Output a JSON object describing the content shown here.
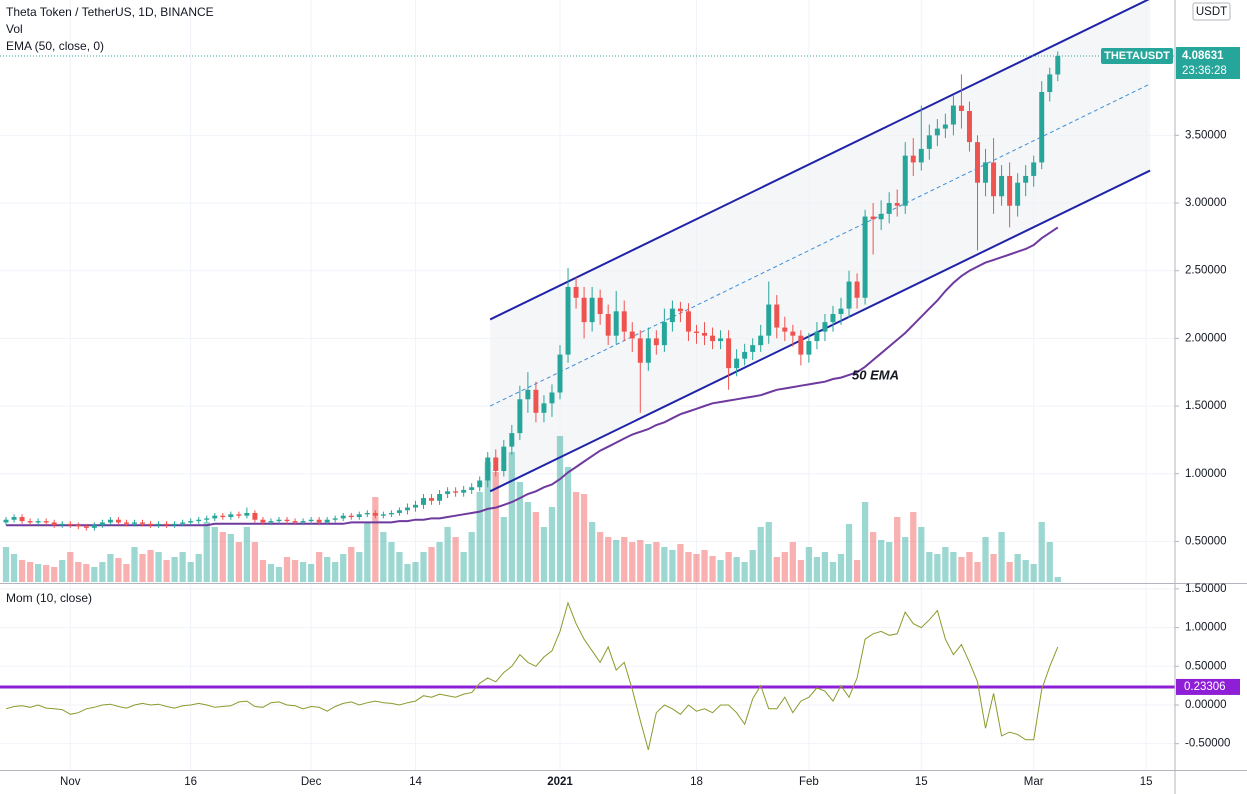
{
  "chart_data": {
    "type": "candlestick",
    "title": "Theta Token / TetherUS, 1D, BINANCE",
    "symbol": "THETAUSDT",
    "currency": "USDT",
    "countdown": "23:36:28",
    "annotation": "50 EMA",
    "grid": true,
    "up_color": "#26a69a",
    "down_color": "#ef5350",
    "xlim": [
      -0.75,
      145.6
    ],
    "xticks": [
      {
        "value": 8,
        "label": "Nov"
      },
      {
        "value": 23,
        "label": "16"
      },
      {
        "value": 38,
        "label": "Dec"
      },
      {
        "value": 51,
        "label": "14"
      },
      {
        "value": 69,
        "label": "2021"
      },
      {
        "value": 86,
        "label": "18"
      },
      {
        "value": 100,
        "label": "Feb"
      },
      {
        "value": 114,
        "label": "15"
      },
      {
        "value": 128,
        "label": "Mar"
      },
      {
        "value": 142,
        "label": "15"
      }
    ],
    "ylim": [
      0.2,
      4.5
    ],
    "yticks": [
      {
        "value": 0.5,
        "label": "0.50000"
      },
      {
        "value": 1,
        "label": "1.00000"
      },
      {
        "value": 1.5,
        "label": "1.50000"
      },
      {
        "value": 2,
        "label": "2.00000"
      },
      {
        "value": 2.5,
        "label": "2.50000"
      },
      {
        "value": 3,
        "label": "3.00000"
      },
      {
        "value": 3.5,
        "label": "3.50000"
      }
    ],
    "open": [
      0.64,
      0.66,
      0.68,
      0.65,
      0.64,
      0.65,
      0.64,
      0.62,
      0.63,
      0.62,
      0.61,
      0.6,
      0.62,
      0.64,
      0.66,
      0.64,
      0.63,
      0.64,
      0.63,
      0.62,
      0.63,
      0.62,
      0.63,
      0.64,
      0.65,
      0.66,
      0.67,
      0.69,
      0.68,
      0.7,
      0.69,
      0.71,
      0.66,
      0.64,
      0.65,
      0.66,
      0.65,
      0.64,
      0.65,
      0.66,
      0.64,
      0.66,
      0.67,
      0.69,
      0.68,
      0.7,
      0.71,
      0.69,
      0.7,
      0.71,
      0.73,
      0.75,
      0.77,
      0.82,
      0.8,
      0.85,
      0.87,
      0.86,
      0.88,
      0.9,
      0.95,
      1.12,
      1.02,
      1.2,
      1.3,
      1.55,
      1.62,
      1.45,
      1.52,
      1.6,
      1.88,
      2.38,
      2.3,
      2.12,
      2.3,
      2.18,
      2.02,
      2.2,
      2.05,
      2.0,
      1.82,
      2.0,
      1.95,
      2.12,
      2.22,
      2.2,
      2.05,
      2.04,
      2.02,
      1.98,
      2.0,
      1.78,
      1.85,
      1.9,
      1.95,
      2.02,
      2.25,
      2.08,
      2.05,
      2.02,
      1.88,
      1.98,
      2.05,
      2.12,
      2.18,
      2.22,
      2.42,
      2.3,
      2.9,
      2.88,
      2.92,
      3.0,
      2.98,
      3.35,
      3.3,
      3.4,
      3.5,
      3.55,
      3.58,
      3.72,
      3.68,
      3.45,
      3.15,
      3.3,
      3.05,
      3.2,
      2.98,
      3.15,
      3.2,
      3.3,
      3.82,
      3.95
    ],
    "high": [
      0.68,
      0.7,
      0.7,
      0.67,
      0.67,
      0.67,
      0.66,
      0.65,
      0.65,
      0.64,
      0.63,
      0.64,
      0.66,
      0.68,
      0.68,
      0.66,
      0.66,
      0.66,
      0.65,
      0.65,
      0.65,
      0.65,
      0.66,
      0.67,
      0.68,
      0.69,
      0.71,
      0.71,
      0.72,
      0.72,
      0.75,
      0.73,
      0.68,
      0.67,
      0.68,
      0.68,
      0.67,
      0.67,
      0.68,
      0.68,
      0.68,
      0.69,
      0.71,
      0.71,
      0.72,
      0.73,
      0.73,
      0.72,
      0.73,
      0.75,
      0.78,
      0.8,
      0.85,
      0.85,
      0.88,
      0.9,
      0.9,
      0.91,
      0.93,
      0.98,
      1.16,
      1.18,
      1.25,
      1.36,
      1.65,
      1.75,
      1.68,
      1.58,
      1.66,
      1.95,
      2.52,
      2.45,
      2.38,
      2.38,
      2.36,
      2.25,
      2.35,
      2.28,
      2.12,
      2.06,
      2.08,
      2.06,
      2.22,
      2.28,
      2.27,
      2.26,
      2.1,
      2.12,
      2.08,
      2.06,
      2.06,
      1.92,
      1.96,
      2.0,
      2.1,
      2.42,
      2.32,
      2.16,
      2.1,
      2.06,
      2.04,
      2.12,
      2.18,
      2.24,
      2.3,
      2.5,
      2.48,
      2.95,
      3.0,
      3.02,
      3.08,
      3.1,
      3.45,
      3.48,
      3.72,
      3.58,
      3.62,
      3.66,
      3.8,
      3.95,
      3.75,
      3.5,
      3.4,
      3.48,
      3.28,
      3.3,
      3.22,
      3.28,
      3.35,
      3.9,
      4.0,
      4.12
    ],
    "low": [
      0.62,
      0.64,
      0.63,
      0.62,
      0.62,
      0.62,
      0.6,
      0.6,
      0.6,
      0.59,
      0.58,
      0.58,
      0.6,
      0.62,
      0.62,
      0.61,
      0.61,
      0.61,
      0.6,
      0.6,
      0.6,
      0.6,
      0.61,
      0.62,
      0.63,
      0.64,
      0.65,
      0.66,
      0.66,
      0.67,
      0.67,
      0.64,
      0.62,
      0.62,
      0.63,
      0.63,
      0.62,
      0.62,
      0.63,
      0.62,
      0.62,
      0.64,
      0.65,
      0.66,
      0.66,
      0.68,
      0.67,
      0.67,
      0.68,
      0.69,
      0.7,
      0.72,
      0.74,
      0.77,
      0.77,
      0.82,
      0.83,
      0.83,
      0.85,
      0.87,
      0.9,
      0.98,
      0.98,
      1.14,
      1.25,
      1.45,
      1.38,
      1.38,
      1.42,
      1.55,
      1.82,
      2.22,
      2.0,
      2.05,
      2.1,
      1.95,
      1.96,
      1.98,
      1.9,
      1.45,
      1.76,
      1.88,
      1.9,
      2.05,
      2.12,
      1.98,
      1.96,
      1.95,
      1.92,
      1.92,
      1.62,
      1.72,
      1.8,
      1.84,
      1.9,
      1.96,
      2.0,
      1.98,
      1.94,
      1.8,
      1.82,
      1.92,
      1.98,
      2.05,
      2.1,
      2.15,
      2.22,
      2.25,
      2.62,
      2.8,
      2.85,
      2.9,
      2.92,
      3.2,
      3.24,
      3.32,
      3.42,
      3.48,
      3.5,
      3.55,
      3.38,
      2.65,
      3.05,
      2.92,
      2.98,
      2.82,
      2.9,
      3.05,
      3.12,
      3.25,
      3.75,
      3.9
    ],
    "close": [
      0.66,
      0.68,
      0.65,
      0.64,
      0.65,
      0.64,
      0.62,
      0.63,
      0.62,
      0.61,
      0.6,
      0.62,
      0.64,
      0.66,
      0.64,
      0.63,
      0.64,
      0.63,
      0.62,
      0.63,
      0.62,
      0.63,
      0.64,
      0.65,
      0.66,
      0.67,
      0.69,
      0.68,
      0.7,
      0.69,
      0.71,
      0.66,
      0.64,
      0.65,
      0.66,
      0.65,
      0.64,
      0.65,
      0.66,
      0.64,
      0.66,
      0.67,
      0.69,
      0.68,
      0.7,
      0.71,
      0.69,
      0.7,
      0.71,
      0.73,
      0.75,
      0.77,
      0.82,
      0.8,
      0.85,
      0.87,
      0.86,
      0.88,
      0.9,
      0.95,
      1.12,
      1.02,
      1.2,
      1.3,
      1.55,
      1.62,
      1.45,
      1.52,
      1.6,
      1.88,
      2.38,
      2.3,
      2.12,
      2.3,
      2.18,
      2.02,
      2.2,
      2.05,
      2.0,
      1.82,
      2.0,
      1.95,
      2.12,
      2.22,
      2.2,
      2.05,
      2.04,
      2.02,
      1.98,
      2.0,
      1.78,
      1.85,
      1.9,
      1.95,
      2.02,
      2.25,
      2.08,
      2.05,
      2.02,
      1.88,
      1.98,
      2.05,
      2.12,
      2.18,
      2.22,
      2.42,
      2.3,
      2.9,
      2.88,
      2.92,
      3.0,
      2.98,
      3.35,
      3.3,
      3.4,
      3.5,
      3.55,
      3.58,
      3.72,
      3.68,
      3.45,
      3.15,
      3.3,
      3.05,
      3.2,
      2.98,
      3.15,
      3.2,
      3.3,
      3.82,
      3.95,
      4.08631
    ],
    "volume": {
      "name": "Vol",
      "values": [
        35,
        28,
        22,
        20,
        18,
        17,
        15,
        22,
        30,
        20,
        18,
        15,
        20,
        28,
        24,
        18,
        35,
        28,
        32,
        30,
        22,
        25,
        30,
        20,
        28,
        60,
        55,
        50,
        48,
        40,
        55,
        40,
        22,
        18,
        15,
        25,
        22,
        20,
        18,
        30,
        25,
        20,
        28,
        35,
        30,
        60,
        85,
        50,
        40,
        30,
        18,
        20,
        30,
        35,
        40,
        55,
        45,
        30,
        50,
        90,
        120,
        110,
        65,
        130,
        100,
        80,
        70,
        55,
        75,
        146,
        115,
        90,
        88,
        60,
        50,
        45,
        42,
        45,
        40,
        42,
        38,
        40,
        35,
        32,
        38,
        30,
        28,
        32,
        26,
        22,
        30,
        25,
        20,
        32,
        55,
        60,
        25,
        30,
        40,
        22,
        35,
        25,
        30,
        20,
        28,
        58,
        22,
        80,
        50,
        42,
        40,
        65,
        45,
        70,
        55,
        30,
        28,
        35,
        30,
        25,
        30,
        20,
        45,
        28,
        50,
        20,
        28,
        22,
        18,
        60,
        40,
        5
      ]
    },
    "ema": {
      "name": "EMA (50, close, 0)",
      "color": "#6f3a9e",
      "values": [
        0.62,
        0.62,
        0.62,
        0.62,
        0.62,
        0.62,
        0.62,
        0.62,
        0.62,
        0.62,
        0.62,
        0.62,
        0.62,
        0.62,
        0.62,
        0.62,
        0.62,
        0.62,
        0.62,
        0.62,
        0.62,
        0.62,
        0.62,
        0.62,
        0.62,
        0.62,
        0.63,
        0.63,
        0.63,
        0.63,
        0.63,
        0.63,
        0.63,
        0.63,
        0.63,
        0.63,
        0.63,
        0.63,
        0.63,
        0.63,
        0.63,
        0.63,
        0.63,
        0.64,
        0.64,
        0.64,
        0.64,
        0.64,
        0.64,
        0.65,
        0.65,
        0.66,
        0.66,
        0.67,
        0.67,
        0.68,
        0.69,
        0.7,
        0.71,
        0.72,
        0.74,
        0.75,
        0.77,
        0.79,
        0.82,
        0.85,
        0.87,
        0.9,
        0.92,
        0.96,
        1.01,
        1.05,
        1.09,
        1.13,
        1.17,
        1.2,
        1.23,
        1.26,
        1.29,
        1.31,
        1.33,
        1.36,
        1.38,
        1.41,
        1.44,
        1.46,
        1.48,
        1.5,
        1.52,
        1.53,
        1.54,
        1.55,
        1.56,
        1.57,
        1.58,
        1.6,
        1.62,
        1.63,
        1.64,
        1.65,
        1.66,
        1.67,
        1.68,
        1.7,
        1.71,
        1.73,
        1.75,
        1.79,
        1.84,
        1.89,
        1.94,
        1.99,
        2.04,
        2.1,
        2.16,
        2.22,
        2.28,
        2.35,
        2.41,
        2.46,
        2.5,
        2.53,
        2.56,
        2.58,
        2.6,
        2.62,
        2.64,
        2.66,
        2.69,
        2.74,
        2.78,
        2.82
      ]
    },
    "channel": {
      "color": "#1f23a8",
      "mid_color": "#3d8fd6",
      "x": [
        60.3,
        142.5
      ],
      "upper": [
        2.14,
        4.51
      ],
      "lower": [
        0.87,
        3.24
      ],
      "middle": [
        1.5,
        3.88
      ]
    },
    "momentum": {
      "name": "Mom (10, close)",
      "color": "#8c9a2c",
      "ylim": [
        -0.84,
        1.55
      ],
      "yticks": [
        {
          "value": 1.5,
          "label": "1.50000"
        },
        {
          "value": 1,
          "label": "1.00000"
        },
        {
          "value": 0.5,
          "label": "0.50000"
        },
        {
          "value": 0,
          "label": "0.00000"
        },
        {
          "value": -0.5,
          "label": "-0.50000"
        }
      ],
      "level": {
        "value": 0.23306,
        "color": "#8e1fd6"
      },
      "values": [
        -0.05,
        -0.02,
        -0.01,
        -0.03,
        0.0,
        -0.04,
        -0.05,
        -0.06,
        -0.12,
        -0.1,
        -0.05,
        -0.03,
        0.0,
        0.01,
        -0.02,
        -0.04,
        0.0,
        0.02,
        0.0,
        0.01,
        -0.02,
        -0.04,
        -0.01,
        0.0,
        0.02,
        0.0,
        -0.03,
        -0.02,
        -0.01,
        0.04,
        0.05,
        -0.02,
        -0.03,
        0.03,
        0.04,
        0.0,
        -0.01,
        -0.05,
        -0.02,
        -0.03,
        -0.08,
        -0.02,
        0.02,
        0.04,
        0.0,
        0.03,
        0.05,
        0.03,
        0.02,
        0.0,
        0.03,
        0.05,
        0.12,
        0.1,
        0.14,
        0.12,
        0.1,
        0.14,
        0.16,
        0.28,
        0.35,
        0.3,
        0.42,
        0.5,
        0.65,
        0.55,
        0.5,
        0.62,
        0.7,
        0.95,
        1.32,
        1.05,
        0.85,
        0.7,
        0.55,
        0.75,
        0.45,
        0.55,
        0.2,
        -0.2,
        -0.58,
        -0.1,
        0.0,
        -0.05,
        -0.12,
        0.0,
        -0.08,
        -0.05,
        -0.1,
        0.0,
        0.0,
        -0.1,
        -0.25,
        0.08,
        0.25,
        -0.05,
        -0.05,
        0.1,
        -0.1,
        0.05,
        0.1,
        0.22,
        0.18,
        0.05,
        0.25,
        0.1,
        0.35,
        0.85,
        0.92,
        0.95,
        0.9,
        0.92,
        1.2,
        1.05,
        1.0,
        1.1,
        1.22,
        0.85,
        0.65,
        0.78,
        0.55,
        0.3,
        -0.3,
        0.15,
        -0.4,
        -0.35,
        -0.38,
        -0.45,
        -0.45,
        0.2,
        0.5,
        0.75
      ]
    }
  }
}
